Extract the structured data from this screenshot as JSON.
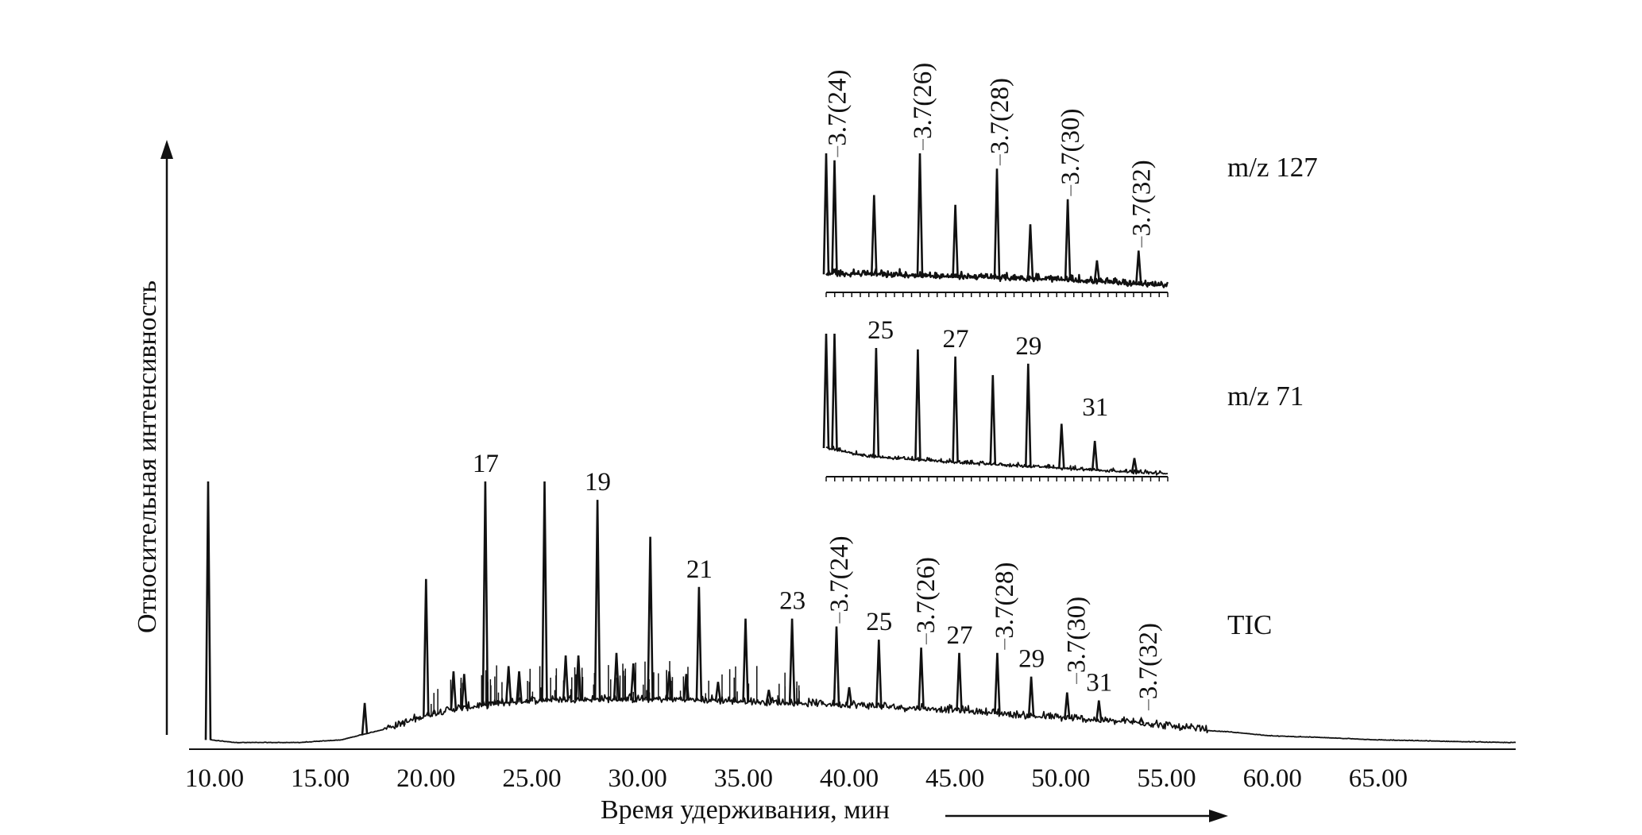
{
  "chart_data": {
    "type": "line",
    "xlabel": "Время удерживания, мин",
    "ylabel": "Относительная интенсивность",
    "xlim": [
      8.8,
      71.5
    ],
    "x_ticks": [
      "10.00",
      "15.00",
      "20.00",
      "25.00",
      "30.00",
      "35.00",
      "40.00",
      "45.00",
      "50.00",
      "55.00",
      "60.00",
      "65.00"
    ],
    "traces": [
      {
        "name": "TIC",
        "ylim": [
          0,
          100
        ],
        "baseline": [
          [
            9.8,
            2
          ],
          [
            11,
            1
          ],
          [
            14,
            1
          ],
          [
            16,
            2
          ],
          [
            17,
            4
          ],
          [
            18,
            6
          ],
          [
            19,
            8
          ],
          [
            20,
            11
          ],
          [
            21,
            13
          ],
          [
            22,
            14
          ],
          [
            23,
            15
          ],
          [
            24,
            16
          ],
          [
            26,
            17
          ],
          [
            28,
            17
          ],
          [
            30,
            17
          ],
          [
            32,
            17
          ],
          [
            34,
            16.5
          ],
          [
            36,
            16
          ],
          [
            38,
            15.5
          ],
          [
            40,
            15
          ],
          [
            42,
            14
          ],
          [
            44,
            13.5
          ],
          [
            46,
            12.5
          ],
          [
            48,
            11
          ],
          [
            50,
            10
          ],
          [
            52,
            9
          ],
          [
            54,
            8
          ],
          [
            56,
            6
          ],
          [
            58,
            5
          ],
          [
            60,
            3.5
          ],
          [
            62,
            3
          ],
          [
            65,
            2
          ],
          [
            71,
            1
          ]
        ],
        "peaks": [
          [
            9.7,
            100
          ],
          [
            17.1,
            16
          ],
          [
            18.9,
            9
          ],
          [
            20.0,
            63
          ],
          [
            21.3,
            28
          ],
          [
            21.8,
            27
          ],
          [
            22.8,
            100
          ],
          [
            23.9,
            30
          ],
          [
            24.4,
            28
          ],
          [
            25.6,
            100
          ],
          [
            26.6,
            34
          ],
          [
            27.2,
            34
          ],
          [
            28.1,
            93
          ],
          [
            29.0,
            35
          ],
          [
            29.8,
            31
          ],
          [
            30.6,
            79
          ],
          [
            31.5,
            28
          ],
          [
            32.3,
            27
          ],
          [
            32.9,
            60
          ],
          [
            33.8,
            24
          ],
          [
            35.1,
            48
          ],
          [
            36.2,
            21
          ],
          [
            37.3,
            48
          ],
          [
            39.4,
            45
          ],
          [
            40.0,
            22
          ],
          [
            41.4,
            40
          ],
          [
            43.4,
            37
          ],
          [
            45.2,
            35
          ],
          [
            47.0,
            35
          ],
          [
            48.6,
            26
          ],
          [
            50.3,
            20
          ],
          [
            51.8,
            17
          ],
          [
            53.8,
            10
          ],
          [
            55.8,
            7
          ]
        ],
        "peak_labels": [
          {
            "text": "17",
            "x": 22.8,
            "y": 100,
            "orientation": "horizontal"
          },
          {
            "text": "19",
            "x": 28.1,
            "y": 93,
            "orientation": "horizontal"
          },
          {
            "text": "21",
            "x": 32.9,
            "y": 60,
            "orientation": "horizontal"
          },
          {
            "text": "23",
            "x": 37.3,
            "y": 48,
            "orientation": "horizontal"
          },
          {
            "text": "3.7(24)",
            "x": 39.4,
            "y": 45,
            "orientation": "vertical"
          },
          {
            "text": "25",
            "x": 41.4,
            "y": 40,
            "orientation": "horizontal"
          },
          {
            "text": "3.7(26)",
            "x": 43.5,
            "y": 37,
            "orientation": "vertical"
          },
          {
            "text": "27",
            "x": 45.2,
            "y": 35,
            "orientation": "horizontal"
          },
          {
            "text": "3.7(28)",
            "x": 47.2,
            "y": 35,
            "orientation": "vertical"
          },
          {
            "text": "29",
            "x": 48.6,
            "y": 26,
            "orientation": "horizontal"
          },
          {
            "text": "3.7(30)",
            "x": 50.6,
            "y": 22,
            "orientation": "vertical"
          },
          {
            "text": "31",
            "x": 51.8,
            "y": 17,
            "orientation": "horizontal"
          },
          {
            "text": "3.7(32)",
            "x": 54.0,
            "y": 12,
            "orientation": "vertical"
          }
        ]
      },
      {
        "name": "m/z 71",
        "ylim": [
          0,
          100
        ],
        "baseline": [
          [
            39.0,
            20
          ],
          [
            41,
            14
          ],
          [
            45,
            10
          ],
          [
            50,
            6
          ],
          [
            55,
            2
          ]
        ],
        "peaks": [
          [
            39.0,
            100
          ],
          [
            39.4,
            100
          ],
          [
            41.4,
            90
          ],
          [
            43.4,
            89
          ],
          [
            45.2,
            84
          ],
          [
            47.0,
            71
          ],
          [
            48.7,
            79
          ],
          [
            50.3,
            37
          ],
          [
            51.9,
            25
          ],
          [
            53.8,
            13
          ]
        ],
        "peak_labels": [
          {
            "text": "25",
            "x": 41.6,
            "y": 90,
            "orientation": "horizontal"
          },
          {
            "text": "27",
            "x": 45.2,
            "y": 84,
            "orientation": "horizontal"
          },
          {
            "text": "29",
            "x": 48.7,
            "y": 79,
            "orientation": "horizontal"
          },
          {
            "text": "31",
            "x": 51.9,
            "y": 36,
            "orientation": "horizontal"
          }
        ]
      },
      {
        "name": "m/z 127",
        "ylim": [
          0,
          100
        ],
        "baseline": [
          [
            39.0,
            13
          ],
          [
            41,
            13
          ],
          [
            45,
            11
          ],
          [
            50,
            9
          ],
          [
            55,
            5
          ]
        ],
        "peaks": [
          [
            39.0,
            100
          ],
          [
            39.4,
            95
          ],
          [
            41.3,
            70
          ],
          [
            43.5,
            100
          ],
          [
            45.2,
            63
          ],
          [
            47.2,
            89
          ],
          [
            48.8,
            49
          ],
          [
            50.6,
            67
          ],
          [
            52.0,
            23
          ],
          [
            54.0,
            30
          ]
        ],
        "peak_labels": [
          {
            "text": "3.7(24)",
            "x": 39.4,
            "y": 95,
            "orientation": "vertical"
          },
          {
            "text": "3.7(26)",
            "x": 43.5,
            "y": 100,
            "orientation": "vertical"
          },
          {
            "text": "3.7(28)",
            "x": 47.2,
            "y": 89,
            "orientation": "vertical"
          },
          {
            "text": "3.7(30)",
            "x": 50.6,
            "y": 67,
            "orientation": "vertical"
          },
          {
            "text": "3.7(32)",
            "x": 54.0,
            "y": 30,
            "orientation": "vertical"
          }
        ]
      }
    ]
  }
}
